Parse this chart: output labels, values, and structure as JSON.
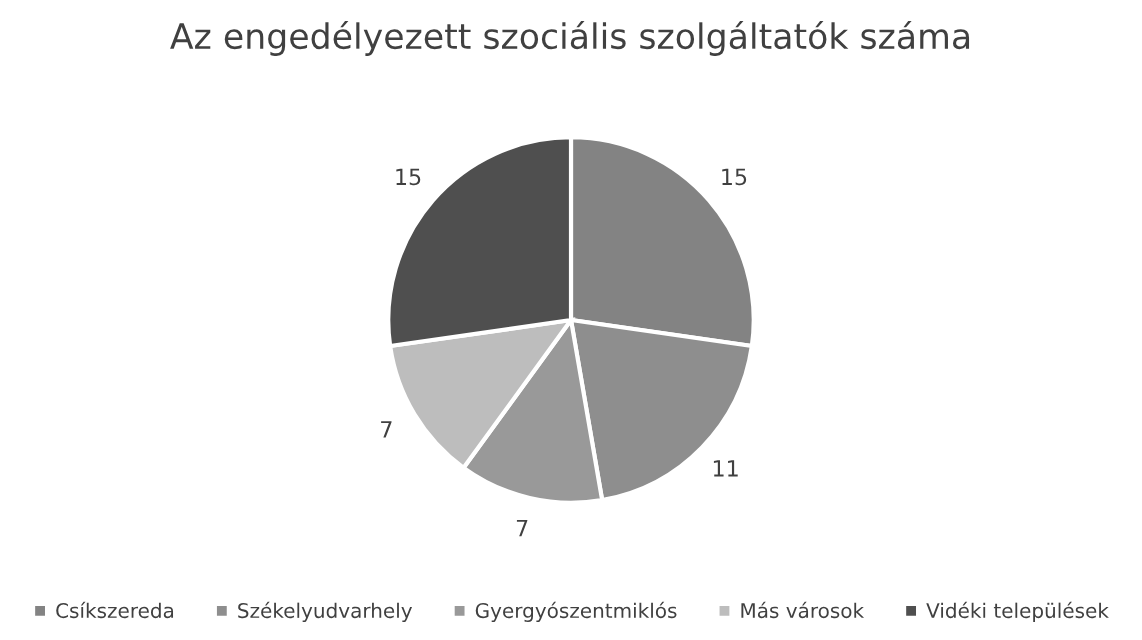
{
  "chart_data": {
    "type": "pie",
    "title": "Az engedélyezett szociális szolgáltatók száma",
    "categories": [
      "Csíkszereda",
      "Székelyudvarhely",
      "Gyergyószentmiklós",
      "Más városok",
      "Vidéki települések"
    ],
    "values": [
      15,
      11,
      7,
      7,
      15
    ],
    "colors": [
      "#838383",
      "#8e8e8e",
      "#999999",
      "#bdbdbd",
      "#4f4f4f"
    ],
    "data_labels": true,
    "legend": "bottom"
  }
}
